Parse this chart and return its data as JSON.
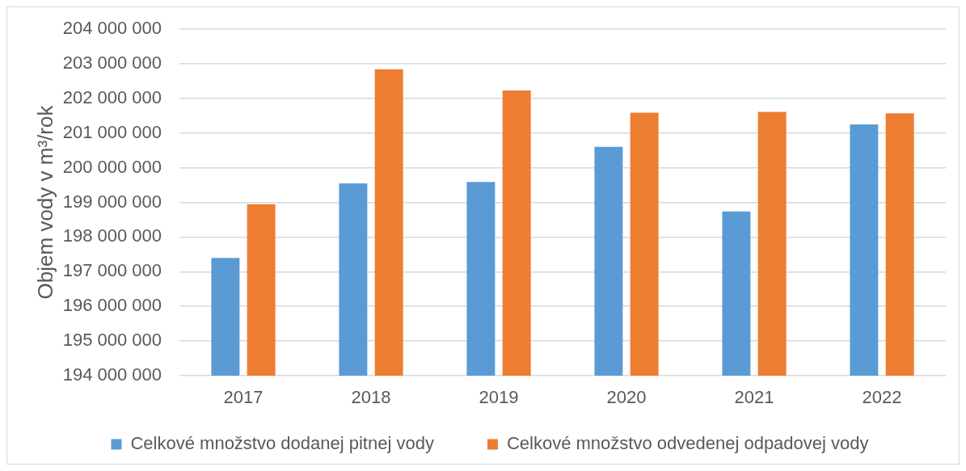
{
  "chart_data": {
    "type": "bar",
    "ylabel": "Objem vody v m³/rok",
    "categories": [
      "2017",
      "2018",
      "2019",
      "2020",
      "2021",
      "2022"
    ],
    "series": [
      {
        "name": "Celkové množstvo dodanej pitnej vody",
        "color": "#5b9bd5",
        "values": [
          197400000,
          199550000,
          199590000,
          200600000,
          198740000,
          201250000
        ]
      },
      {
        "name": "Celkové množstvo odvedenej odpadovej vody",
        "color": "#ed7d31",
        "values": [
          198950000,
          202840000,
          202230000,
          201590000,
          201610000,
          201570000
        ]
      }
    ],
    "ylim": [
      194000000,
      204000000
    ],
    "yticks": [
      {
        "value": 194000000,
        "label": "194 000 000"
      },
      {
        "value": 195000000,
        "label": "195 000 000"
      },
      {
        "value": 196000000,
        "label": "196 000 000"
      },
      {
        "value": 197000000,
        "label": "197 000 000"
      },
      {
        "value": 198000000,
        "label": "198 000 000"
      },
      {
        "value": 199000000,
        "label": "199 000 000"
      },
      {
        "value": 200000000,
        "label": "200 000 000"
      },
      {
        "value": 201000000,
        "label": "201 000 000"
      },
      {
        "value": 202000000,
        "label": "202 000 000"
      },
      {
        "value": 203000000,
        "label": "203 000 000"
      },
      {
        "value": 204000000,
        "label": "204 000 000"
      }
    ],
    "grid": "y",
    "legend": "bottom"
  }
}
